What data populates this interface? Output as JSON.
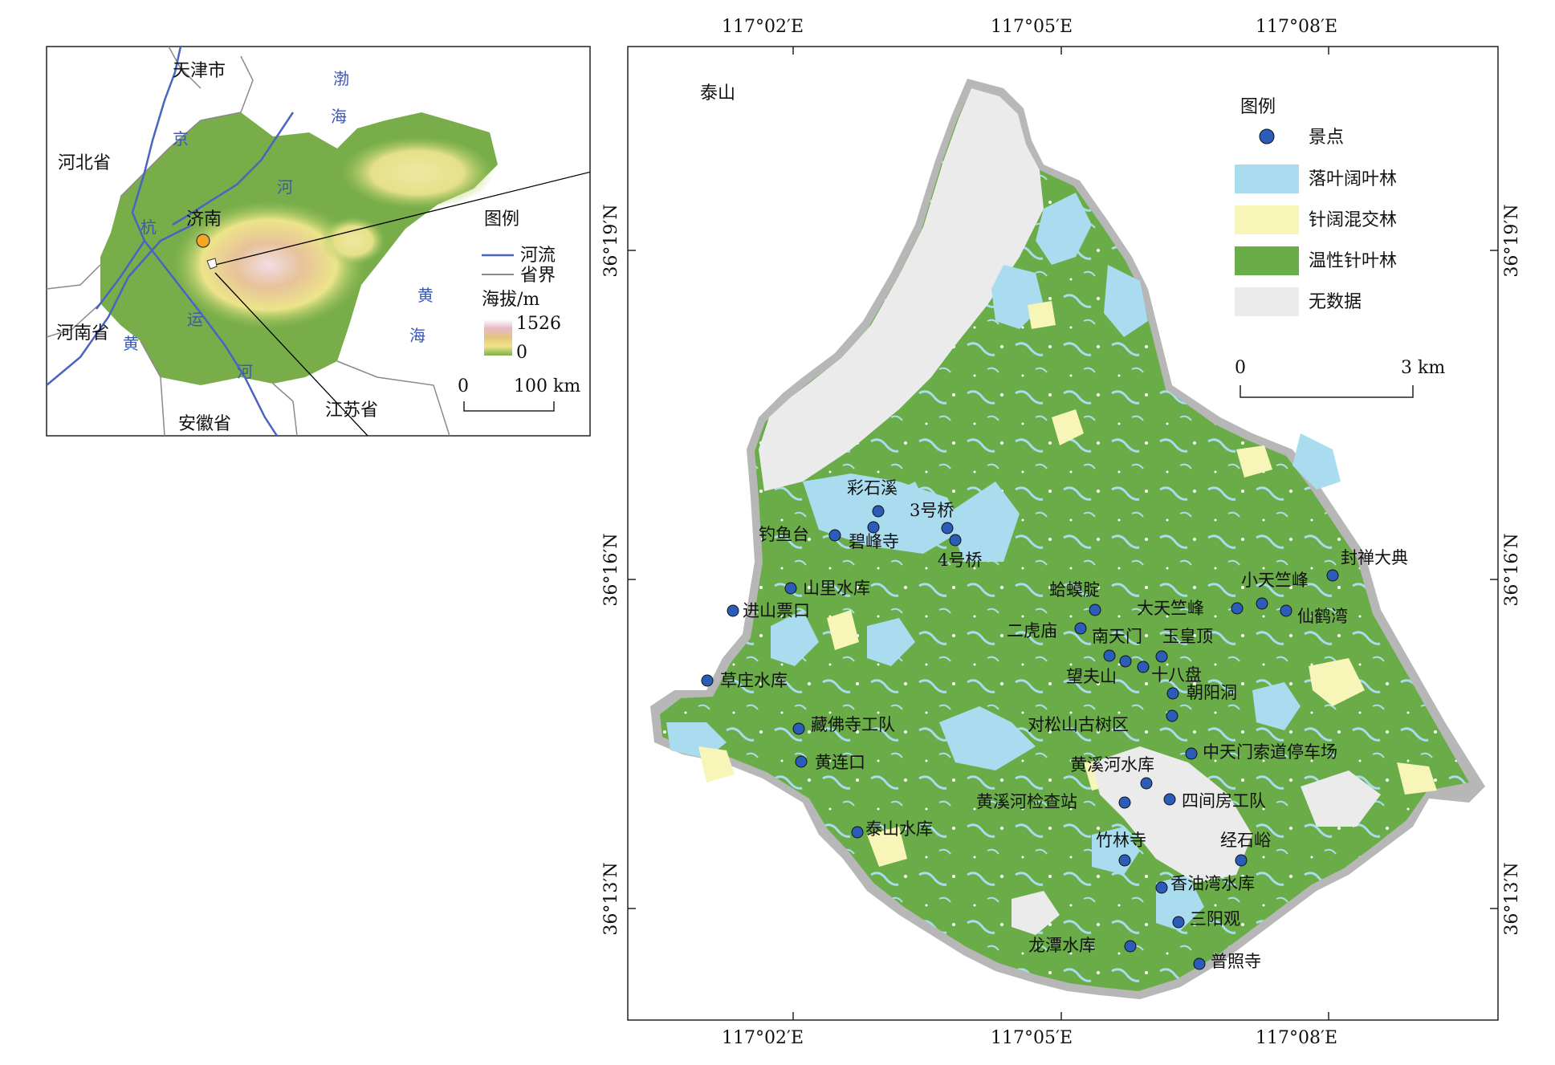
{
  "inset": {
    "places": {
      "tianjin": "天津市",
      "hebei": "河北省",
      "henan": "河南省",
      "anhui": "安徽省",
      "jiangsu": "江苏省",
      "jinan": "济南"
    },
    "water": {
      "bohai1": "渤",
      "bohai2": "海",
      "jing": "京",
      "he1": "河",
      "hang": "杭",
      "yun": "运",
      "he2": "河",
      "huang_river": "黄",
      "huanghai1": "黄",
      "huanghai2": "海"
    },
    "legend": {
      "title": "图例",
      "river": "河流",
      "border": "省界",
      "elev_title": "海拔/m",
      "elev_max": "1526",
      "elev_min": "0",
      "scale_0": "0",
      "scale_100": "100 km"
    },
    "colors": {
      "river": "#4a64c0",
      "border": "#8a8a8a",
      "jinan_dot": "#f5a623"
    }
  },
  "main": {
    "region_label": "泰山",
    "axis": {
      "top": [
        "117°02′E",
        "117°05′E",
        "117°08′E"
      ],
      "bottom": [
        "117°02′E",
        "117°05′E",
        "117°08′E"
      ],
      "left": [
        "36°19′N",
        "36°16′N",
        "36°13′N"
      ],
      "right": [
        "36°19′N",
        "36°16′N",
        "36°13′N"
      ]
    },
    "legend": {
      "title": "图例",
      "items": [
        {
          "label": "景点",
          "color": "#2a5cb8",
          "kind": "point"
        },
        {
          "label": "落叶阔叶林",
          "color": "#a9dcee",
          "kind": "patch"
        },
        {
          "label": "针阔混交林",
          "color": "#f7f6b8",
          "kind": "patch"
        },
        {
          "label": "温性针叶林",
          "color": "#6aac48",
          "kind": "patch"
        },
        {
          "label": "无数据",
          "color": "#ebebeb",
          "kind": "patch"
        }
      ],
      "scale_0": "0",
      "scale_3": "3 km"
    },
    "spots": [
      {
        "label": "彩石溪"
      },
      {
        "label": "3号桥"
      },
      {
        "label": "钓鱼台"
      },
      {
        "label": "碧峰寺"
      },
      {
        "label": "4号桥"
      },
      {
        "label": "山里水库"
      },
      {
        "label": "进山票口"
      },
      {
        "label": "草庄水库"
      },
      {
        "label": "藏佛寺工队"
      },
      {
        "label": "黄连口"
      },
      {
        "label": "泰山水库"
      },
      {
        "label": "封禅大典"
      },
      {
        "label": "小天竺峰"
      },
      {
        "label": "大天竺峰"
      },
      {
        "label": "仙鹤湾"
      },
      {
        "label": "蛤蟆腚"
      },
      {
        "label": "二虎庙"
      },
      {
        "label": "南天门"
      },
      {
        "label": "玉皇顶"
      },
      {
        "label": "十八盘"
      },
      {
        "label": "望夫山"
      },
      {
        "label": "朝阳洞"
      },
      {
        "label": "对松山古树区"
      },
      {
        "label": "中天门索道停车场"
      },
      {
        "label": "黄溪河水库"
      },
      {
        "label": "黄溪河检查站"
      },
      {
        "label": "四间房工队"
      },
      {
        "label": "竹林寺"
      },
      {
        "label": "经石峪"
      },
      {
        "label": "香油湾水库"
      },
      {
        "label": "三阳观"
      },
      {
        "label": "龙潭水库"
      },
      {
        "label": "普照寺"
      }
    ]
  }
}
